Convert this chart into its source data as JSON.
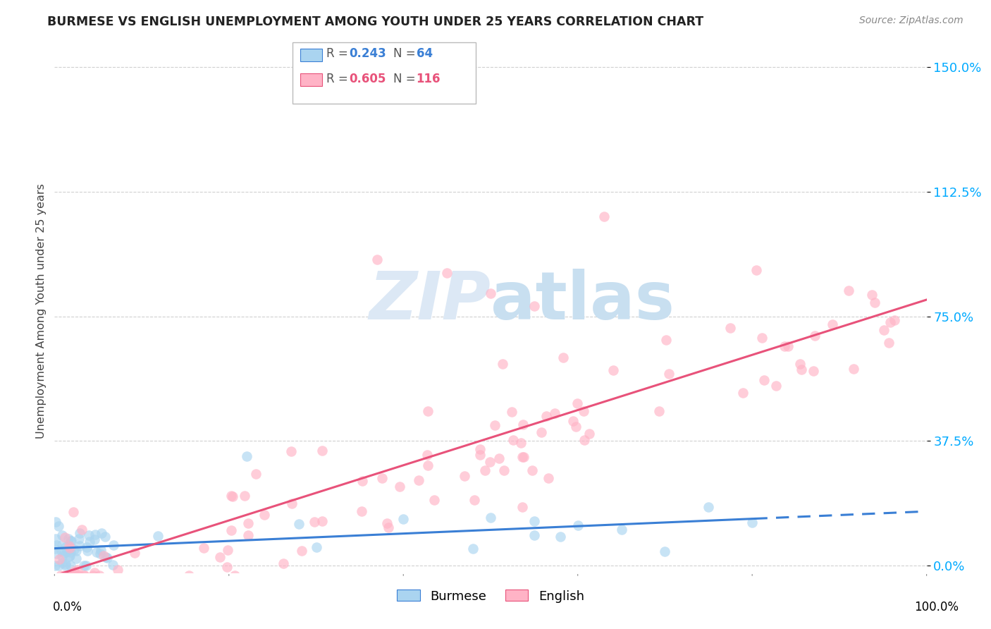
{
  "title": "BURMESE VS ENGLISH UNEMPLOYMENT AMONG YOUTH UNDER 25 YEARS CORRELATION CHART",
  "source": "Source: ZipAtlas.com",
  "ylabel": "Unemployment Among Youth under 25 years",
  "xlim": [
    0.0,
    1.0
  ],
  "ylim": [
    -0.02,
    1.55
  ],
  "yticks": [
    0.0,
    0.375,
    0.75,
    1.125,
    1.5
  ],
  "ytick_labels": [
    "0.0%",
    "37.5%",
    "75.0%",
    "112.5%",
    "150.0%"
  ],
  "burmese_color": "#aad4f0",
  "english_color": "#ffb3c6",
  "burmese_line_color": "#3a7fd5",
  "english_line_color": "#e8527a",
  "burmese_R": 0.243,
  "burmese_N": 64,
  "english_R": 0.605,
  "english_N": 116,
  "watermark": "ZIPatlas",
  "legend_label_burmese": "Burmese",
  "legend_label_english": "English",
  "background_color": "#ffffff",
  "title_color": "#222222",
  "source_color": "#888888",
  "ylabel_color": "#444444",
  "grid_color": "#d0d0d0",
  "ytick_color": "#00aaff",
  "xtick_color": "#000000"
}
